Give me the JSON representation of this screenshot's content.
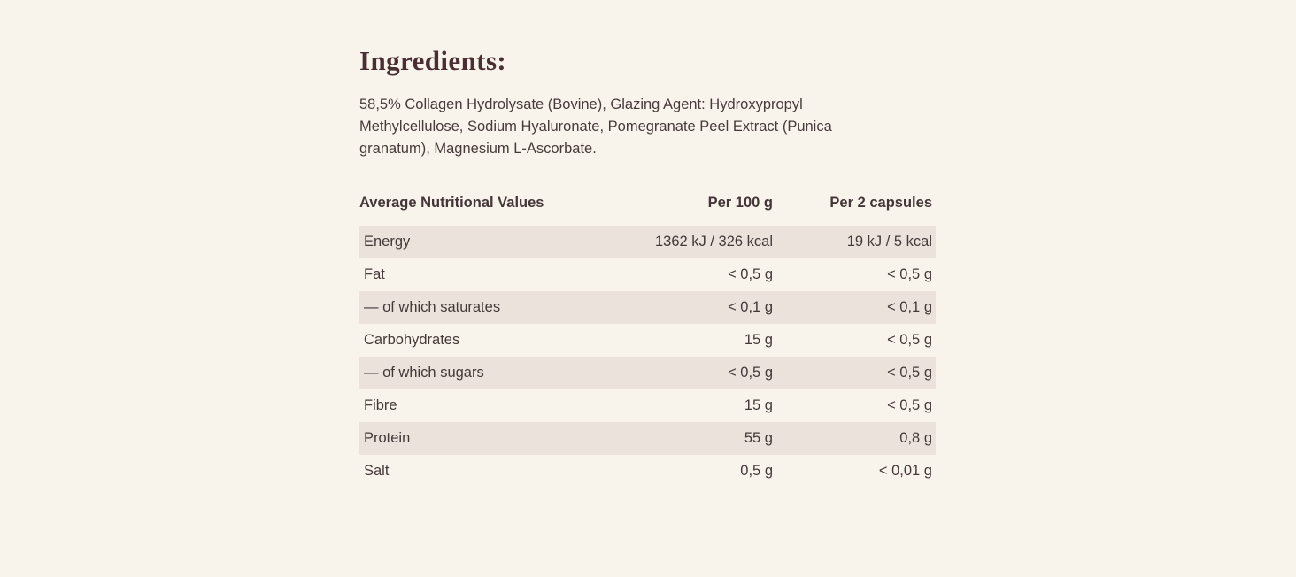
{
  "page": {
    "background_color": "#f8f4ec",
    "row_shade_color": "#ebe2dc",
    "text_color": "#453839",
    "heading_color": "#4a2e34"
  },
  "ingredients": {
    "title": "Ingredients:",
    "lines": [
      "58,5% Collagen Hydrolysate (Bovine), Glazing Agent: Hydroxypropyl",
      "Methylcellulose, Sodium Hyaluronate, Pomegranate Peel Extract (Punica",
      "granatum), Magnesium L-Ascorbate."
    ]
  },
  "nutrition_table": {
    "headers": [
      "Average Nutritional Values",
      "Per 100 g",
      "Per 2 capsules"
    ],
    "rows": [
      {
        "label": "Energy",
        "per_100g": "1362 kJ / 326 kcal",
        "per_2_capsules": "19 kJ / 5 kcal"
      },
      {
        "label": "Fat",
        "per_100g": "< 0,5 g",
        "per_2_capsules": "< 0,5 g"
      },
      {
        "label": "— of which saturates",
        "per_100g": "< 0,1 g",
        "per_2_capsules": "< 0,1 g"
      },
      {
        "label": "Carbohydrates",
        "per_100g": "15 g",
        "per_2_capsules": "< 0,5 g"
      },
      {
        "label": "— of which sugars",
        "per_100g": "< 0,5 g",
        "per_2_capsules": "< 0,5 g"
      },
      {
        "label": "Fibre",
        "per_100g": "15 g",
        "per_2_capsules": "< 0,5 g"
      },
      {
        "label": "Protein",
        "per_100g": "55 g",
        "per_2_capsules": "0,8 g"
      },
      {
        "label": "Salt",
        "per_100g": "0,5 g",
        "per_2_capsules": "< 0,01 g"
      }
    ]
  }
}
